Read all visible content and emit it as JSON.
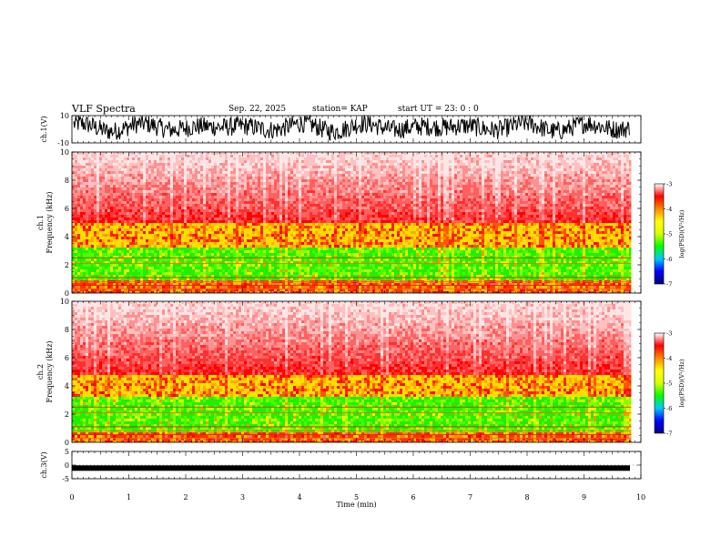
{
  "header": {
    "title": "VLF Spectra",
    "date": "Sep. 22, 2025",
    "station": "station= KAP",
    "start_ut": "start  UT =   23: 0  : 0"
  },
  "chart_data": [
    {
      "type": "line",
      "panel": "ch1-waveform",
      "ylabel": "ch.1(V)",
      "ylim": [
        -10,
        10
      ],
      "ytick_labels": [
        "10",
        "-10"
      ],
      "xlim": [
        0,
        10
      ],
      "description": "dense noisy waveform oscillating roughly between -7 and +10 V"
    },
    {
      "type": "heatmap",
      "panel": "ch1-spectrogram",
      "ylabel": "ch.1\nFrequency  (kHz)",
      "ylim": [
        0,
        10
      ],
      "ytick_labels": [
        "0",
        "2",
        "4",
        "6",
        "8",
        "10"
      ],
      "xlim": [
        0,
        9.83
      ],
      "bands": [
        {
          "from_khz": 0,
          "to_khz": 1.0,
          "level": "orange-red with lines"
        },
        {
          "from_khz": 1.0,
          "to_khz": 3.3,
          "level": "green"
        },
        {
          "from_khz": 3.3,
          "to_khz": 5.0,
          "level": "yellow-red"
        },
        {
          "from_khz": 5.0,
          "to_khz": 10,
          "level": "red to pale pink"
        }
      ]
    },
    {
      "type": "heatmap",
      "panel": "ch2-spectrogram",
      "ylabel": "ch.2\nFrequency  (kHz)",
      "ylim": [
        0,
        10
      ],
      "ytick_labels": [
        "0",
        "2",
        "4",
        "6",
        "8",
        "10"
      ],
      "xlim": [
        0,
        9.83
      ],
      "bands": [
        {
          "from_khz": 0,
          "to_khz": 0.9,
          "level": "orange-red with lines"
        },
        {
          "from_khz": 0.9,
          "to_khz": 3.3,
          "level": "green"
        },
        {
          "from_khz": 3.3,
          "to_khz": 4.8,
          "level": "yellow-red"
        },
        {
          "from_khz": 4.8,
          "to_khz": 10,
          "level": "red to pale pink"
        }
      ]
    },
    {
      "type": "line",
      "panel": "ch3-waveform",
      "ylabel": "ch.3(V)",
      "ylim": [
        -5,
        5
      ],
      "ytick_labels": [
        "5",
        "0",
        "-5"
      ],
      "xlim": [
        0,
        10
      ],
      "level": -1.1,
      "description": "thick near-constant trace around -1 V"
    }
  ],
  "x_axis": {
    "label": "Time  (min)",
    "tick_labels": [
      "0",
      "1",
      "2",
      "3",
      "4",
      "5",
      "6",
      "7",
      "8",
      "9",
      "10"
    ],
    "range": [
      0,
      10
    ]
  },
  "colorbar": {
    "label": "log(PSD)(V²/Hz)",
    "tick_labels": [
      "-3",
      "-4",
      "-5",
      "-6",
      "-7"
    ],
    "range": [
      -7,
      -3
    ],
    "colors": [
      "#000080",
      "#0000ff",
      "#00c8ff",
      "#00ff00",
      "#d8ff00",
      "#ffff00",
      "#ff8800",
      "#ff0000",
      "#ffffff"
    ]
  }
}
